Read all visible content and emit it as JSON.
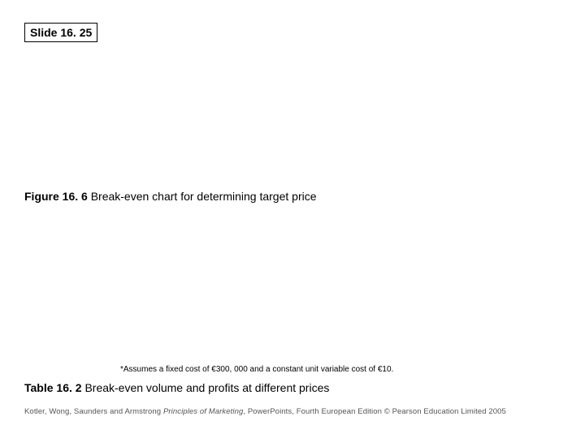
{
  "slide_tag": "Slide 16. 25",
  "figure": {
    "label": "Figure 16. 6",
    "title": " Break-even chart for determining target price"
  },
  "footnote": "*Assumes a fixed cost of €300, 000 and a constant unit variable cost of €10.",
  "table": {
    "label": "Table 16. 2",
    "title": " Break-even volume and profits at different prices"
  },
  "footer": {
    "authors": "Kotler, Wong, Saunders and Armstrong ",
    "book": "Principles of Marketing",
    "rest": ", PowerPoints, Fourth European Edition © Pearson Education Limited 2005"
  }
}
